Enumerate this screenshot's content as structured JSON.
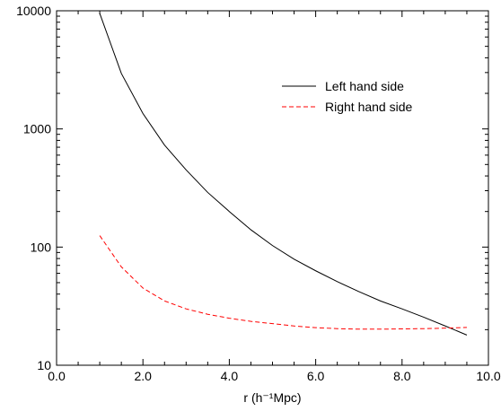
{
  "chart_data": {
    "type": "line",
    "title": "",
    "xlabel": "r (h⁻¹Mpc)",
    "ylabel": "",
    "xlim": [
      0.0,
      10.0
    ],
    "ylim": [
      10,
      10000
    ],
    "yscale": "log",
    "grid": false,
    "legend_position": "top-right",
    "x_ticks": [
      0.0,
      2.0,
      4.0,
      6.0,
      8.0,
      10.0
    ],
    "x_tick_labels": [
      "0.0",
      "2.0",
      "4.0",
      "6.0",
      "8.0",
      "10.0"
    ],
    "y_ticks": [
      10,
      100,
      1000,
      10000
    ],
    "y_tick_labels": [
      "10",
      "100",
      "1000",
      "10000"
    ],
    "series": [
      {
        "name": "Left hand side",
        "color": "#000000",
        "style": "solid",
        "x": [
          1.0,
          1.5,
          2.0,
          2.5,
          3.0,
          3.5,
          4.0,
          4.5,
          5.0,
          5.5,
          6.0,
          6.5,
          7.0,
          7.5,
          8.0,
          8.5,
          9.0,
          9.5
        ],
        "y": [
          9500,
          2950,
          1350,
          730,
          450,
          290,
          200,
          140,
          103,
          79,
          63,
          51,
          42,
          35,
          30,
          25.5,
          21.5,
          18
        ]
      },
      {
        "name": "Right hand side",
        "color": "#ff0000",
        "style": "dashed",
        "x": [
          1.0,
          1.5,
          2.0,
          2.5,
          3.0,
          3.5,
          4.0,
          4.5,
          5.0,
          5.5,
          6.0,
          6.5,
          7.0,
          7.5,
          8.0,
          8.5,
          9.0,
          9.5
        ],
        "y": [
          125,
          68,
          45,
          35,
          30,
          27,
          25,
          23.5,
          22.5,
          21.5,
          20.8,
          20.4,
          20.2,
          20.2,
          20.3,
          20.4,
          20.6,
          20.9
        ]
      }
    ]
  }
}
